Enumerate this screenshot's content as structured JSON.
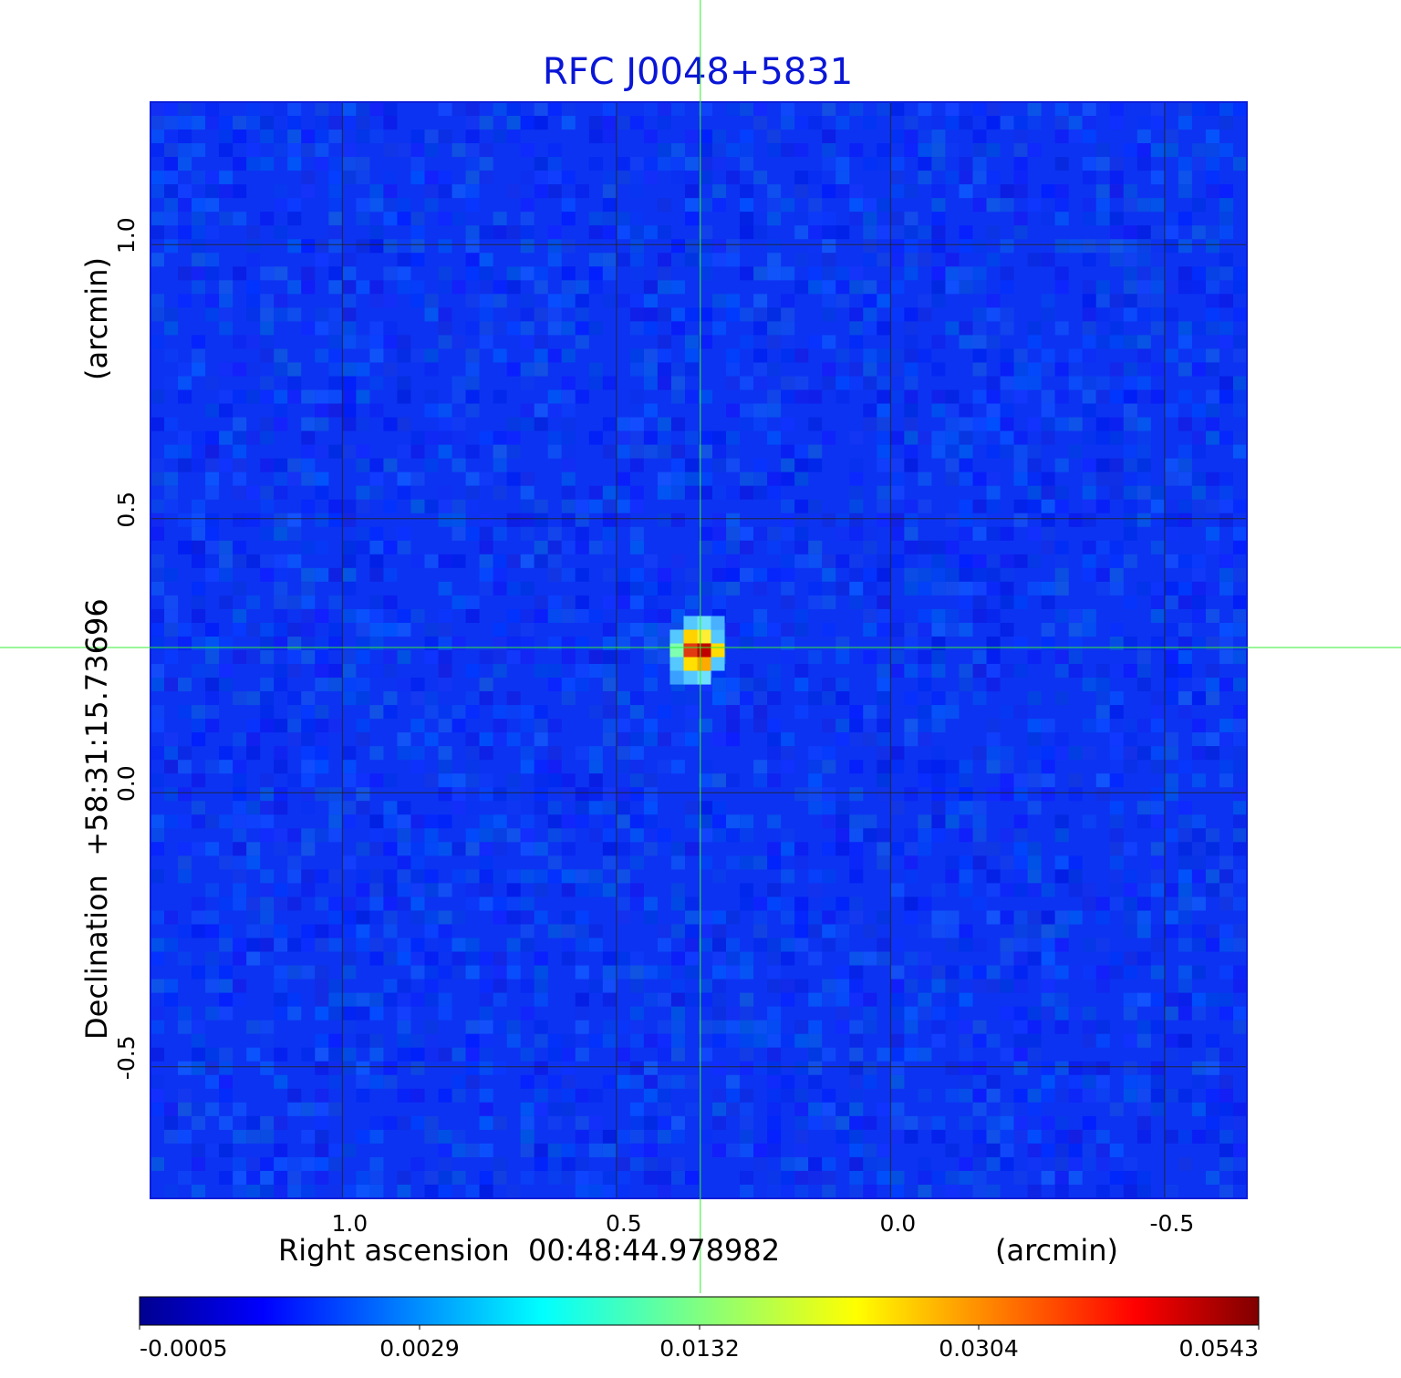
{
  "chart_data": {
    "type": "heatmap",
    "title": "RFC J0048+5831",
    "xlabel": "Right ascension  00:48:44.978982",
    "xlabel_unit": "(arcmin)",
    "ylabel": "Declination  +58:31:15.73696",
    "ylabel_unit": "(arcmin)",
    "xlim": [
      1.35,
      -0.65
    ],
    "ylim": [
      -0.74,
      1.26
    ],
    "x_ticks": [
      1.0,
      0.5,
      0.0,
      -0.5
    ],
    "x_tick_labels": [
      "1.0",
      "0.5",
      "0.0",
      "-0.5"
    ],
    "y_ticks": [
      1.0,
      0.5,
      0.0,
      -0.5
    ],
    "y_tick_labels": [
      "1.0",
      "0.5",
      "0.0",
      "-0.5"
    ],
    "grid": true,
    "crosshair": {
      "x": 0.347,
      "y": 0.265,
      "color": "#33ee33"
    },
    "source": {
      "x": 0.34,
      "y": 0.26,
      "peak": 0.0543
    },
    "colorbar": {
      "colormap": "jet",
      "tick_labels": [
        "-0.0005",
        "0.0029",
        "0.0132",
        "0.0304",
        "0.0543"
      ],
      "values": [
        -0.0005,
        0.0029,
        0.0132,
        0.0304,
        0.0543
      ]
    }
  }
}
